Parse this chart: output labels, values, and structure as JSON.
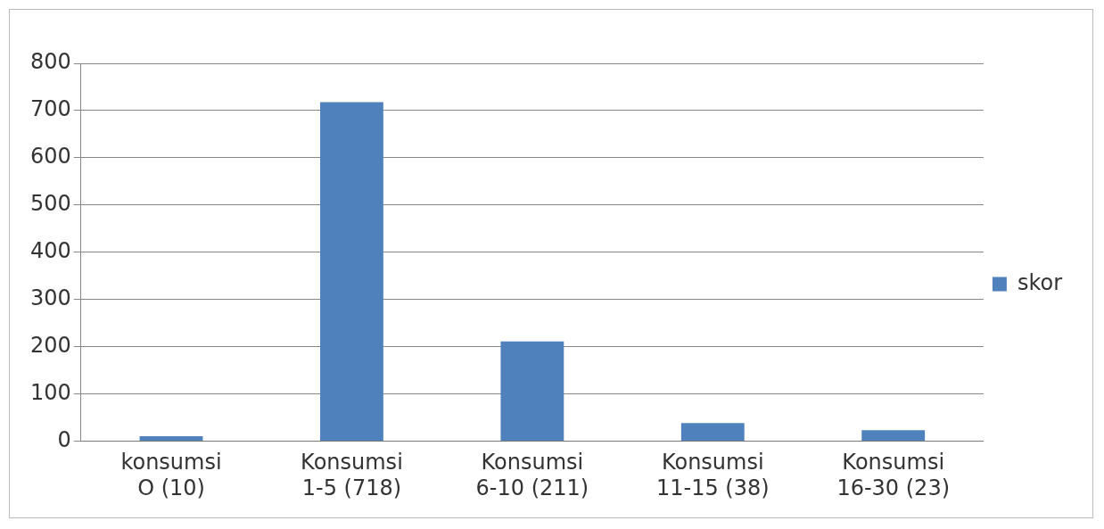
{
  "chart_data": {
    "type": "bar",
    "categories": [
      "konsumsi O (10)",
      "Konsumsi 1-5 (718)",
      "Konsumsi 6-10 (211)",
      "Konsumsi 11-15 (38)",
      "Konsumsi 16-30 (23)"
    ],
    "series": [
      {
        "name": "skor",
        "color": "#4f81bd",
        "values": [
          10,
          718,
          211,
          38,
          23
        ]
      }
    ],
    "ylim": [
      0,
      800
    ],
    "yticks": [
      0,
      100,
      200,
      300,
      400,
      500,
      600,
      700,
      800
    ],
    "grid": "y",
    "legend": "right"
  }
}
